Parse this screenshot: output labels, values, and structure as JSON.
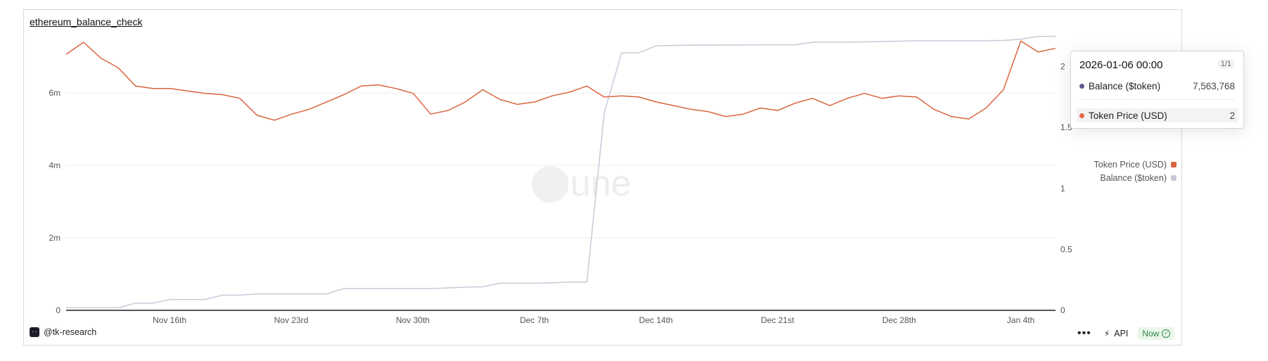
{
  "panel": {
    "title": "ethereum_balance_check",
    "author": "@tk-research",
    "author_logo_text": "··",
    "api_label": "API",
    "now_label": "Now",
    "watermark": "Dune"
  },
  "tooltip": {
    "date": "2026-01-06 00:00",
    "page": "1/1",
    "rows": [
      {
        "label": "Balance ($token)",
        "value": "7,563,768",
        "color": "#5b5b8f"
      },
      {
        "label": "Token Price (USD)",
        "value": "2",
        "color": "#e06a45"
      }
    ]
  },
  "legend": [
    {
      "label": "Token Price (USD)",
      "color": "#d9653f"
    },
    {
      "label": "Balance ($token)",
      "color": "#c9c9d9"
    }
  ],
  "chart_data": {
    "type": "line",
    "title": "ethereum_balance_check",
    "x_ticks": [
      "Nov 16th",
      "Nov 23rd",
      "Nov 30th",
      "Dec 7th",
      "Dec 14th",
      "Dec 21st",
      "Dec 28th",
      "Jan 4th"
    ],
    "y_left_ticks": [
      "0",
      "2m",
      "4m",
      "6m"
    ],
    "y_right_ticks": [
      "0",
      "0.5",
      "1",
      "1.5",
      "2"
    ],
    "y_left_range": [
      0,
      7400000
    ],
    "y_right_range": [
      0,
      2.2
    ],
    "x_range": [
      "2025-11-10",
      "2026-01-06"
    ],
    "grid": true,
    "legend_position": "right",
    "series": [
      {
        "name": "Token Price (USD)",
        "axis": "right",
        "color": "#d9653f",
        "x": [
          "2025-11-10",
          "2025-11-11",
          "2025-11-12",
          "2025-11-13",
          "2025-11-14",
          "2025-11-15",
          "2025-11-16",
          "2025-11-17",
          "2025-11-18",
          "2025-11-19",
          "2025-11-20",
          "2025-11-21",
          "2025-11-22",
          "2025-11-23",
          "2025-11-24",
          "2025-11-25",
          "2025-11-26",
          "2025-11-27",
          "2025-11-28",
          "2025-11-29",
          "2025-11-30",
          "2025-12-01",
          "2025-12-02",
          "2025-12-03",
          "2025-12-04",
          "2025-12-05",
          "2025-12-06",
          "2025-12-07",
          "2025-12-08",
          "2025-12-09",
          "2025-12-10",
          "2025-12-11",
          "2025-12-12",
          "2025-12-13",
          "2025-12-14",
          "2025-12-15",
          "2025-12-16",
          "2025-12-17",
          "2025-12-18",
          "2025-12-19",
          "2025-12-20",
          "2025-12-21",
          "2025-12-22",
          "2025-12-23",
          "2025-12-24",
          "2025-12-25",
          "2025-12-26",
          "2025-12-27",
          "2025-12-28",
          "2025-12-29",
          "2025-12-30",
          "2025-12-31",
          "2026-01-01",
          "2026-01-02",
          "2026-01-03",
          "2026-01-04",
          "2026-01-05",
          "2026-01-06"
        ],
        "values": [
          2.1,
          2.2,
          2.07,
          1.99,
          1.84,
          1.82,
          1.82,
          1.8,
          1.78,
          1.77,
          1.74,
          1.6,
          1.56,
          1.61,
          1.65,
          1.71,
          1.77,
          1.84,
          1.85,
          1.82,
          1.78,
          1.61,
          1.64,
          1.71,
          1.81,
          1.73,
          1.69,
          1.71,
          1.76,
          1.79,
          1.84,
          1.75,
          1.76,
          1.75,
          1.71,
          1.68,
          1.65,
          1.63,
          1.59,
          1.61,
          1.66,
          1.64,
          1.7,
          1.74,
          1.68,
          1.74,
          1.78,
          1.74,
          1.76,
          1.75,
          1.65,
          1.59,
          1.57,
          1.66,
          1.81,
          2.21,
          2.12,
          2.15
        ]
      },
      {
        "name": "Balance ($token)",
        "axis": "left",
        "color": "#c9c9d9",
        "x": [
          "2025-11-10",
          "2025-11-13",
          "2025-11-14",
          "2025-11-15",
          "2025-11-16",
          "2025-11-17",
          "2025-11-18",
          "2025-11-19",
          "2025-11-20",
          "2025-11-21",
          "2025-11-22",
          "2025-11-23",
          "2025-11-24",
          "2025-11-25",
          "2025-11-26",
          "2025-11-27",
          "2025-11-28",
          "2025-11-29",
          "2025-11-30",
          "2025-12-01",
          "2025-12-02",
          "2025-12-03",
          "2025-12-04",
          "2025-12-05",
          "2025-12-06",
          "2025-12-07",
          "2025-12-08",
          "2025-12-09",
          "2025-12-10",
          "2025-12-11",
          "2025-12-12",
          "2025-12-13",
          "2025-12-14",
          "2025-12-15",
          "2025-12-16",
          "2025-12-22",
          "2025-12-23",
          "2025-12-24",
          "2025-12-25",
          "2025-12-26",
          "2025-12-27",
          "2025-12-28",
          "2025-12-29",
          "2026-01-01",
          "2026-01-02",
          "2026-01-03",
          "2026-01-04",
          "2026-01-05",
          "2026-01-06"
        ],
        "values": [
          70000,
          70000,
          200000,
          200000,
          300000,
          300000,
          300000,
          420000,
          420000,
          450000,
          450000,
          450000,
          450000,
          450000,
          600000,
          600000,
          600000,
          600000,
          600000,
          600000,
          620000,
          640000,
          650000,
          750000,
          750000,
          750000,
          760000,
          780000,
          780000,
          5450000,
          7100000,
          7110000,
          7300000,
          7310000,
          7320000,
          7330000,
          7400000,
          7400000,
          7400000,
          7410000,
          7420000,
          7430000,
          7440000,
          7440000,
          7440000,
          7450000,
          7480000,
          7560000,
          7563768
        ]
      }
    ]
  }
}
